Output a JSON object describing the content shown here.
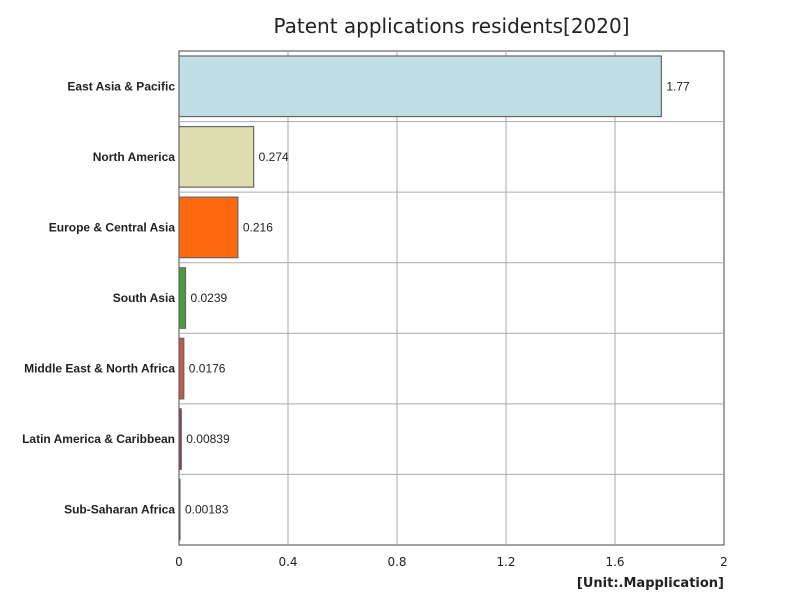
{
  "chart_data": {
    "type": "bar",
    "orientation": "horizontal",
    "title": "Patent applications residents[2020]",
    "unit_label": "[Unit:.Mapplication]",
    "categories": [
      "East Asia & Pacific",
      "North America",
      "Europe & Central Asia",
      "South Asia",
      "Middle East & North Africa",
      "Latin America & Caribbean",
      "Sub-Saharan Africa"
    ],
    "values": [
      1.77,
      0.274,
      0.216,
      0.0239,
      0.0176,
      0.00839,
      0.00183
    ],
    "value_labels": [
      "1.77",
      "0.274",
      "0.216",
      "0.0239",
      "0.0176",
      "0.00839",
      "0.00183"
    ],
    "colors": [
      "#c0dfe4",
      "#deddb0",
      "#ff6a10",
      "#4a9a3e",
      "#c05a4a",
      "#9e3456",
      "#606060"
    ],
    "xlim": [
      0,
      2
    ],
    "xticks": [
      0,
      0.4,
      0.8,
      1.2,
      1.6,
      2
    ],
    "xtick_labels": [
      "0",
      "0.4",
      "0.8",
      "1.2",
      "1.6",
      "2"
    ],
    "grid": true
  }
}
